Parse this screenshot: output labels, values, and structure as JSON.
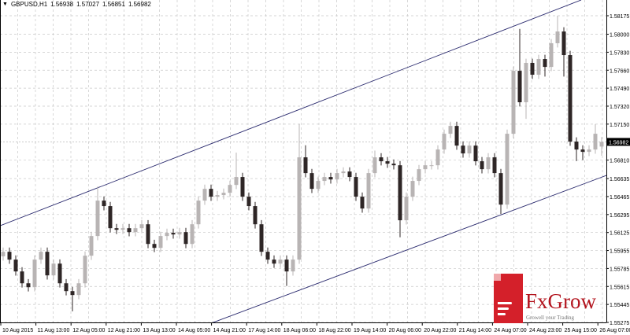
{
  "header": {
    "symbol": "GBPUSD,H1",
    "open": "1.56938",
    "high": "1.57027",
    "low": "1.56851",
    "close": "1.56982",
    "menu_icon": "triangle-down-icon"
  },
  "logo": {
    "brand": "FxGrow",
    "tagline": "Growell your Trading",
    "color": "#d4202a"
  },
  "colors": {
    "bull": "#b8b4b4",
    "bear": "#2e2626",
    "channel": "#2a2a6e",
    "grid": "#c8c8c8",
    "current_price_bg": "#000000"
  },
  "chart_data": {
    "type": "candlestick",
    "symbol": "GBPUSD",
    "timeframe": "H1",
    "grid": true,
    "ylim": [
      1.55275,
      1.58175
    ],
    "y_ticks": [
      "1.58175",
      "1.58000",
      "1.57830",
      "1.57660",
      "1.57490",
      "1.57320",
      "1.57150",
      "1.56810",
      "1.56635",
      "1.56465",
      "1.56295",
      "1.56125",
      "1.55955",
      "1.55785",
      "1.55615",
      "1.55445",
      "1.55275"
    ],
    "current_price": "1.56982",
    "x_ticks": [
      "10 Aug 2015",
      "11 Aug 13:00",
      "12 Aug 05:00",
      "12 Aug 21:00",
      "13 Aug 13:00",
      "14 Aug 05:00",
      "14 Aug 21:00",
      "17 Aug 14:00",
      "18 Aug 06:00",
      "18 Aug 22:00",
      "19 Aug 14:00",
      "20 Aug 06:00",
      "20 Aug 22:00",
      "21 Aug 14:00",
      "24 Aug 07:00",
      "24 Aug 23:00",
      "25 Aug 15:00",
      "26 Aug 07:00"
    ],
    "candles": [
      [
        1.559,
        1.55983,
        1.5586,
        1.55943
      ],
      [
        1.55943,
        1.55983,
        1.55829,
        1.55869
      ],
      [
        1.55869,
        1.55909,
        1.55717,
        1.55757
      ],
      [
        1.55757,
        1.55797,
        1.55605,
        1.55645
      ],
      [
        1.55645,
        1.55685,
        1.55568,
        1.55608
      ],
      [
        1.55608,
        1.55909,
        1.55568,
        1.55869
      ],
      [
        1.55869,
        1.55983,
        1.55829,
        1.55943
      ],
      [
        1.55943,
        1.55983,
        1.5568,
        1.5572
      ],
      [
        1.5572,
        1.55871,
        1.5568,
        1.55831
      ],
      [
        1.55831,
        1.55871,
        1.55605,
        1.55645
      ],
      [
        1.55645,
        1.55685,
        1.55531,
        1.55571
      ],
      [
        1.55571,
        1.55611,
        1.5538,
        1.55534
      ],
      [
        1.55534,
        1.55685,
        1.55494,
        1.55645
      ],
      [
        1.55645,
        1.55946,
        1.55605,
        1.55906
      ],
      [
        1.55906,
        1.56132,
        1.55866,
        1.56092
      ],
      [
        1.56092,
        1.5656,
        1.56052,
        1.56427
      ],
      [
        1.56427,
        1.56467,
        1.56335,
        1.56375
      ],
      [
        1.56375,
        1.56415,
        1.56126,
        1.56166
      ],
      [
        1.56166,
        1.56206,
        1.56111,
        1.56151
      ],
      [
        1.56151,
        1.56206,
        1.56111,
        1.56166
      ],
      [
        1.56166,
        1.56206,
        1.56089,
        1.56129
      ],
      [
        1.56129,
        1.56206,
        1.56089,
        1.56166
      ],
      [
        1.56166,
        1.56243,
        1.56126,
        1.56203
      ],
      [
        1.56203,
        1.56243,
        1.55977,
        1.56017
      ],
      [
        1.56017,
        1.56057,
        1.5594,
        1.5598
      ],
      [
        1.5598,
        1.56132,
        1.5594,
        1.56092
      ],
      [
        1.56092,
        1.56162,
        1.56052,
        1.56122
      ],
      [
        1.56122,
        1.56162,
        1.56067,
        1.56107
      ],
      [
        1.56107,
        1.56169,
        1.56067,
        1.56129
      ],
      [
        1.56129,
        1.56169,
        1.55977,
        1.56017
      ],
      [
        1.56017,
        1.56243,
        1.55977,
        1.56203
      ],
      [
        1.56203,
        1.56467,
        1.56163,
        1.56427
      ],
      [
        1.56427,
        1.56578,
        1.56387,
        1.56538
      ],
      [
        1.56538,
        1.56578,
        1.56424,
        1.56464
      ],
      [
        1.56464,
        1.56519,
        1.56424,
        1.56479
      ],
      [
        1.56479,
        1.56541,
        1.56439,
        1.56501
      ],
      [
        1.56501,
        1.56615,
        1.56461,
        1.56575
      ],
      [
        1.56575,
        1.5688,
        1.56535,
        1.5665
      ],
      [
        1.5665,
        1.5669,
        1.56424,
        1.56464
      ],
      [
        1.56464,
        1.56504,
        1.56335,
        1.56375
      ],
      [
        1.56375,
        1.56415,
        1.56163,
        1.56203
      ],
      [
        1.56203,
        1.56243,
        1.55903,
        1.55943
      ],
      [
        1.55943,
        1.55983,
        1.55829,
        1.55869
      ],
      [
        1.55869,
        1.55909,
        1.55791,
        1.55831
      ],
      [
        1.55831,
        1.55909,
        1.55791,
        1.55869
      ],
      [
        1.55869,
        1.55909,
        1.5562,
        1.55757
      ],
      [
        1.55757,
        1.55909,
        1.55717,
        1.55869
      ],
      [
        1.55869,
        1.5715,
        1.55829,
        1.56836
      ],
      [
        1.56836,
        1.5695,
        1.56647,
        1.56687
      ],
      [
        1.56687,
        1.56727,
        1.56498,
        1.56538
      ],
      [
        1.56538,
        1.56653,
        1.56498,
        1.56613
      ],
      [
        1.56613,
        1.5669,
        1.56573,
        1.5665
      ],
      [
        1.5665,
        1.5669,
        1.56587,
        1.56627
      ],
      [
        1.56627,
        1.56727,
        1.56587,
        1.56687
      ],
      [
        1.56687,
        1.56742,
        1.56647,
        1.56702
      ],
      [
        1.56702,
        1.56742,
        1.5661,
        1.5665
      ],
      [
        1.5665,
        1.5669,
        1.56424,
        1.56464
      ],
      [
        1.56464,
        1.56504,
        1.56312,
        1.56352
      ],
      [
        1.56352,
        1.56727,
        1.56312,
        1.56687
      ],
      [
        1.56687,
        1.569,
        1.56647,
        1.56836
      ],
      [
        1.56836,
        1.56876,
        1.56759,
        1.56799
      ],
      [
        1.56799,
        1.56839,
        1.56736,
        1.56776
      ],
      [
        1.56776,
        1.56816,
        1.56721,
        1.56761
      ],
      [
        1.56761,
        1.56801,
        1.5608,
        1.56241
      ],
      [
        1.56241,
        1.56504,
        1.56201,
        1.56464
      ],
      [
        1.56464,
        1.56653,
        1.56424,
        1.56613
      ],
      [
        1.56613,
        1.56764,
        1.56573,
        1.56724
      ],
      [
        1.56724,
        1.56801,
        1.56684,
        1.56761
      ],
      [
        1.56761,
        1.56801,
        1.56721,
        1.56761
      ],
      [
        1.56761,
        1.5695,
        1.56721,
        1.5691
      ],
      [
        1.5691,
        1.57099,
        1.5687,
        1.57059
      ],
      [
        1.57059,
        1.57173,
        1.57019,
        1.57133
      ],
      [
        1.57133,
        1.57173,
        1.56907,
        1.56947
      ],
      [
        1.56947,
        1.56987,
        1.56833,
        1.56873
      ],
      [
        1.56873,
        1.56987,
        1.56833,
        1.56947
      ],
      [
        1.56947,
        1.56987,
        1.56759,
        1.56799
      ],
      [
        1.56799,
        1.56839,
        1.56684,
        1.56724
      ],
      [
        1.56724,
        1.56876,
        1.56684,
        1.56836
      ],
      [
        1.56836,
        1.56876,
        1.56647,
        1.56687
      ],
      [
        1.56687,
        1.56727,
        1.563,
        1.56389
      ],
      [
        1.56389,
        1.57099,
        1.56349,
        1.57059
      ],
      [
        1.57059,
        1.57694,
        1.57019,
        1.57654
      ],
      [
        1.57654,
        1.5805,
        1.57317,
        1.57357
      ],
      [
        1.57357,
        1.57769,
        1.572,
        1.57729
      ],
      [
        1.57729,
        1.57769,
        1.57577,
        1.57617
      ],
      [
        1.57617,
        1.57806,
        1.57577,
        1.57766
      ],
      [
        1.57766,
        1.57806,
        1.576,
        1.57691
      ],
      [
        1.57691,
        1.57955,
        1.57651,
        1.57915
      ],
      [
        1.57915,
        1.58175,
        1.57875,
        1.58026
      ],
      [
        1.58026,
        1.58066,
        1.576,
        1.57803
      ],
      [
        1.57803,
        1.57843,
        1.56945,
        1.56985
      ],
      [
        1.56985,
        1.57025,
        1.568,
        1.5691
      ],
      [
        1.5691,
        1.5695,
        1.5681,
        1.56888
      ],
      [
        1.56888,
        1.5695,
        1.56848,
        1.5691
      ],
      [
        1.5691,
        1.5715,
        1.5687,
        1.57059
      ],
      [
        1.56938,
        1.57027,
        1.56851,
        1.56982
      ]
    ],
    "channel_lines": [
      {
        "from": [
          -0.5,
          1.56189
        ],
        "to": [
          91.75,
          1.58324
        ]
      },
      {
        "from": [
          33.25,
          1.55273
        ],
        "to": [
          95.75,
          1.56665
        ]
      }
    ]
  }
}
